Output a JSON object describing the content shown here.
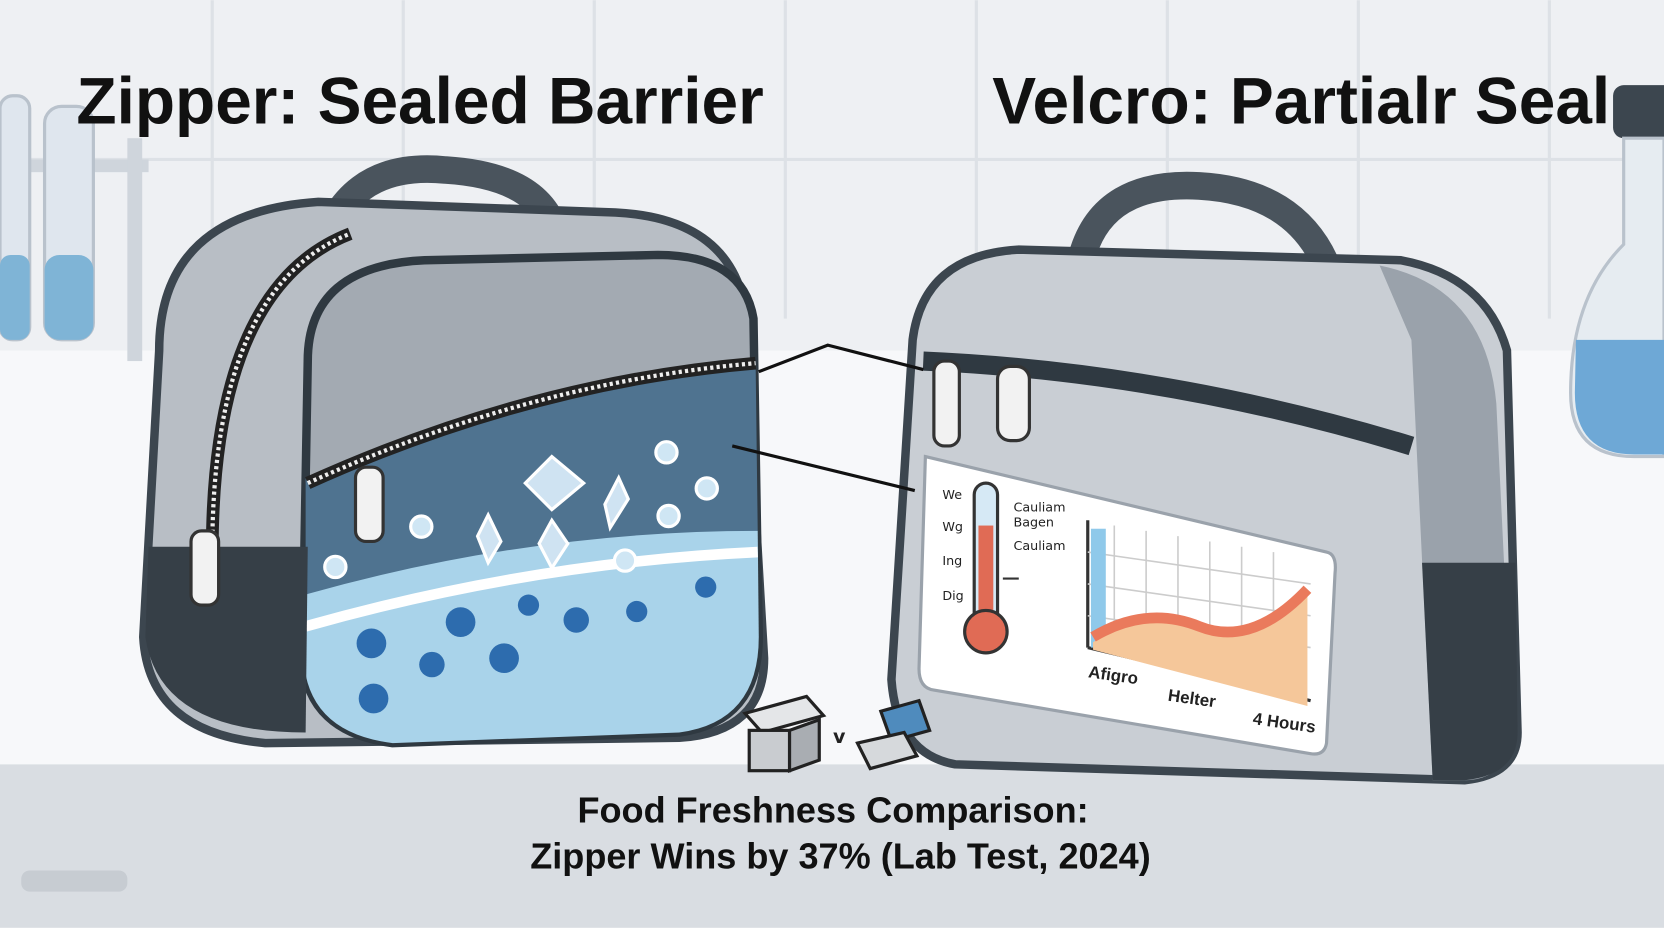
{
  "left_title": "Zipper: Sealed Barrier",
  "right_title": "Velcro: Partialr Seal",
  "panel": {
    "y_labels": [
      "We",
      "Wg",
      "Ing",
      "Dig"
    ],
    "legend": [
      "Cauliam",
      "Bagen",
      "Cauliam"
    ],
    "x_labels": [
      "Afigro",
      "Helter",
      "4 Hours"
    ]
  },
  "icon_separator": "v",
  "caption": [
    "Food Freshness Comparison:",
    "Zipper Wins by 37% (Lab Test, 2024)"
  ]
}
